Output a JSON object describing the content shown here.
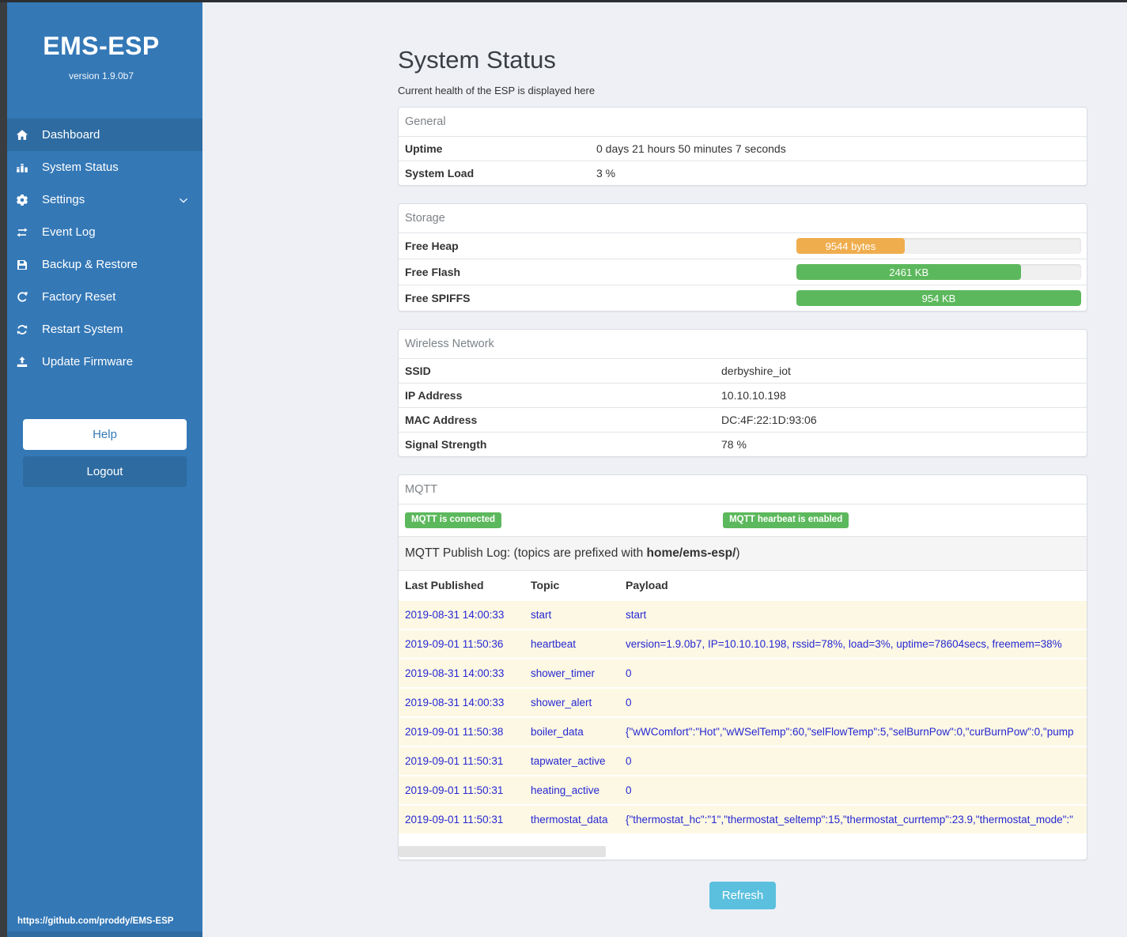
{
  "sidebar": {
    "brand": "EMS-ESP",
    "version": "version 1.9.0b7",
    "items": [
      {
        "label": "Dashboard",
        "icon": "home-icon"
      },
      {
        "label": "System Status",
        "icon": "chart-icon"
      },
      {
        "label": "Settings",
        "icon": "gear-icon"
      },
      {
        "label": "Event Log",
        "icon": "exchange-icon"
      },
      {
        "label": "Backup & Restore",
        "icon": "save-icon"
      },
      {
        "label": "Factory Reset",
        "icon": "rotate-icon"
      },
      {
        "label": "Restart System",
        "icon": "refresh-icon"
      },
      {
        "label": "Update Firmware",
        "icon": "upload-icon"
      }
    ],
    "help_label": "Help",
    "logout_label": "Logout",
    "footer_link": "https://github.com/proddy/EMS-ESP"
  },
  "page": {
    "title": "System Status",
    "subtitle": "Current health of the ESP is displayed here"
  },
  "general": {
    "title": "General",
    "rows": [
      {
        "label": "Uptime",
        "value": "0 days 21 hours 50 minutes 7 seconds"
      },
      {
        "label": "System Load",
        "value": "3 %"
      }
    ]
  },
  "storage": {
    "title": "Storage",
    "rows": [
      {
        "label": "Free Heap",
        "bar_label": "9544 bytes",
        "percent": 38,
        "color": "#f0ad4e"
      },
      {
        "label": "Free Flash",
        "bar_label": "2461 KB",
        "percent": 79,
        "color": "#5cb85c"
      },
      {
        "label": "Free SPIFFS",
        "bar_label": "954 KB",
        "percent": 100,
        "color": "#5cb85c"
      }
    ]
  },
  "wireless": {
    "title": "Wireless Network",
    "rows": [
      {
        "label": "SSID",
        "value": "derbyshire_iot"
      },
      {
        "label": "IP Address",
        "value": "10.10.10.198"
      },
      {
        "label": "MAC Address",
        "value": "DC:4F:22:1D:93:06"
      },
      {
        "label": "Signal Strength",
        "value": "78 %"
      }
    ]
  },
  "mqtt": {
    "title": "MQTT",
    "badge_connected": "MQTT is connected",
    "badge_heartbeat": "MQTT hearbeat is enabled",
    "publish_log_text": "MQTT Publish Log: (topics are prefixed with ",
    "publish_log_prefix": "home/ems-esp/",
    "publish_log_suffix": ")",
    "table": {
      "headers": [
        "Last Published",
        "Topic",
        "Payload"
      ],
      "rows": [
        {
          "time": "2019-08-31 14:00:33",
          "topic": "start",
          "payload": "start"
        },
        {
          "time": "2019-09-01 11:50:36",
          "topic": "heartbeat",
          "payload": "version=1.9.0b7, IP=10.10.10.198, rssid=78%, load=3%, uptime=78604secs, freemem=38%"
        },
        {
          "time": "2019-08-31 14:00:33",
          "topic": "shower_timer",
          "payload": "0"
        },
        {
          "time": "2019-08-31 14:00:33",
          "topic": "shower_alert",
          "payload": "0"
        },
        {
          "time": "2019-09-01 11:50:38",
          "topic": "boiler_data",
          "payload": "{\"wWComfort\":\"Hot\",\"wWSelTemp\":60,\"selFlowTemp\":5,\"selBurnPow\":0,\"curBurnPow\":0,\"pump"
        },
        {
          "time": "2019-09-01 11:50:31",
          "topic": "tapwater_active",
          "payload": "0"
        },
        {
          "time": "2019-09-01 11:50:31",
          "topic": "heating_active",
          "payload": "0"
        },
        {
          "time": "2019-09-01 11:50:31",
          "topic": "thermostat_data",
          "payload": "{\"thermostat_hc\":\"1\",\"thermostat_seltemp\":15,\"thermostat_currtemp\":23.9,\"thermostat_mode\":\""
        }
      ]
    }
  },
  "refresh_label": "Refresh",
  "colors": {
    "sidebar_blue": "#3478b6",
    "sidebar_active": "#2d6ba1",
    "success_green": "#5cb85c",
    "warning_orange": "#f0ad4e",
    "info_blue": "#5bc0de",
    "log_row_bg": "#fcf8e3",
    "log_text_blue": "#2727d3"
  }
}
